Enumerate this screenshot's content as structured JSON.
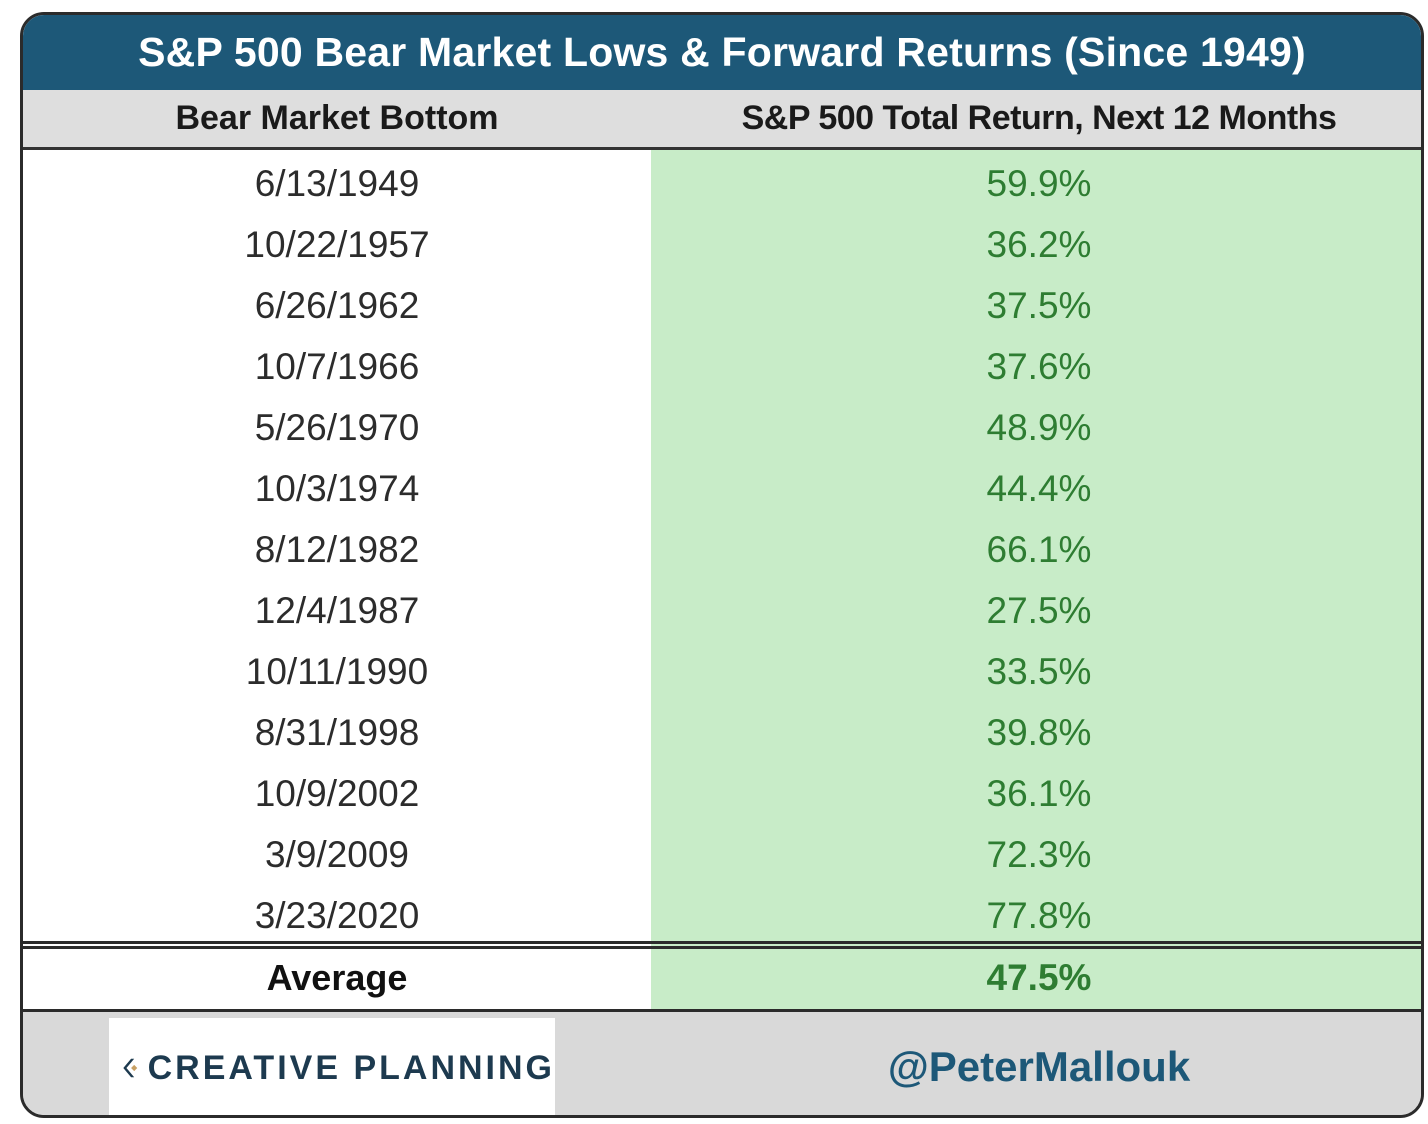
{
  "title": "S&P 500 Bear Market Lows & Forward Returns (Since 1949)",
  "chart_data": {
    "type": "table",
    "columns": [
      "Bear Market Bottom",
      "S&P 500 Total Return, Next 12 Months"
    ],
    "rows": [
      {
        "date": "6/13/1949",
        "return": "59.9%",
        "value": 59.9
      },
      {
        "date": "10/22/1957",
        "return": "36.2%",
        "value": 36.2
      },
      {
        "date": "6/26/1962",
        "return": "37.5%",
        "value": 37.5
      },
      {
        "date": "10/7/1966",
        "return": "37.6%",
        "value": 37.6
      },
      {
        "date": "5/26/1970",
        "return": "48.9%",
        "value": 48.9
      },
      {
        "date": "10/3/1974",
        "return": "44.4%",
        "value": 44.4
      },
      {
        "date": "8/12/1982",
        "return": "66.1%",
        "value": 66.1
      },
      {
        "date": "12/4/1987",
        "return": "27.5%",
        "value": 27.5
      },
      {
        "date": "10/11/1990",
        "return": "33.5%",
        "value": 33.5
      },
      {
        "date": "8/31/1998",
        "return": "39.8%",
        "value": 39.8
      },
      {
        "date": "10/9/2002",
        "return": "36.1%",
        "value": 36.1
      },
      {
        "date": "3/9/2009",
        "return": "72.3%",
        "value": 72.3
      },
      {
        "date": "3/23/2020",
        "return": "77.8%",
        "value": 77.8
      }
    ],
    "summary": {
      "label": "Average",
      "return": "47.5%",
      "value": 47.5
    }
  },
  "footer": {
    "logo_text": "CREATIVE PLANNING",
    "handle": "@PeterMallouk"
  },
  "colors": {
    "title_bg": "#1d5878",
    "header_bg": "#dedede",
    "return_band": "#c8ecc8",
    "return_text": "#2e7d32",
    "footer_bg": "#d9d9d9"
  },
  "icons": {
    "logo": "creative-planning-logo-icon"
  }
}
